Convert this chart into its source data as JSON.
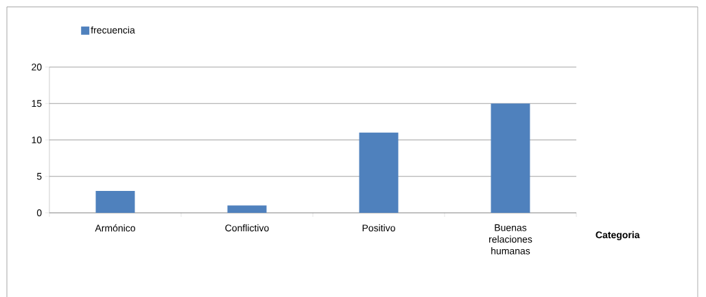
{
  "chart_data": {
    "type": "bar",
    "xlabel": "Categoria",
    "categories": [
      "Armónico",
      "Conflictivo",
      "Positivo",
      "Buenas relaciones humanas"
    ],
    "series": [
      {
        "name": "frecuencia",
        "color": "#4f81bd",
        "values": [
          3,
          1,
          11,
          15
        ]
      }
    ],
    "ylim": [
      0,
      20
    ],
    "yticks": [
      0,
      5,
      10,
      15,
      20
    ],
    "grid": "y",
    "legend": "top left"
  }
}
